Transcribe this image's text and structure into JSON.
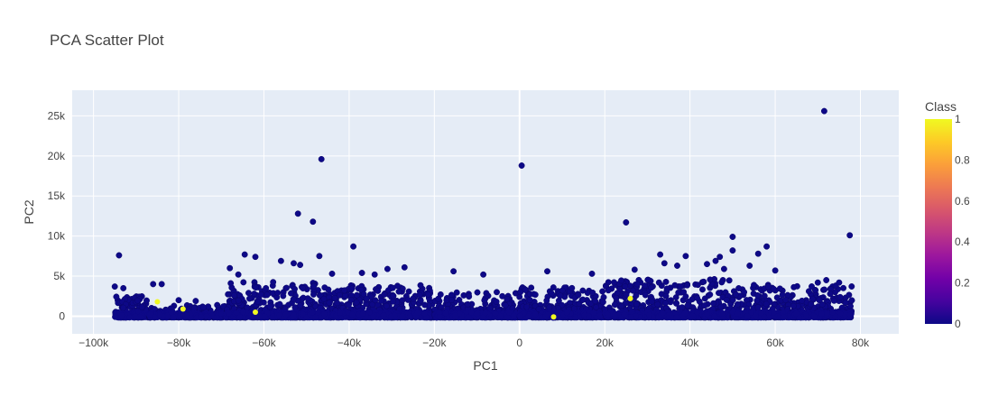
{
  "chart_data": {
    "type": "scatter",
    "title": "PCA Scatter Plot",
    "xlabel": "PC1",
    "ylabel": "PC2",
    "xlim": [
      -105000,
      89000
    ],
    "ylim": [
      -2200,
      28200
    ],
    "x_ticks": [
      -100000,
      -80000,
      -60000,
      -40000,
      -20000,
      0,
      20000,
      40000,
      60000,
      80000
    ],
    "x_tick_labels": [
      "−100k",
      "−80k",
      "−60k",
      "−40k",
      "−20k",
      "0",
      "20k",
      "40k",
      "60k",
      "80k"
    ],
    "y_ticks": [
      0,
      5000,
      10000,
      15000,
      20000,
      25000
    ],
    "y_tick_labels": [
      "0",
      "5k",
      "10k",
      "15k",
      "20k",
      "25k"
    ],
    "grid": true,
    "colorbar": {
      "title": "Class",
      "range": [
        0,
        1
      ],
      "ticks": [
        0,
        0.2,
        0.4,
        0.6,
        0.8,
        1
      ],
      "tick_labels": [
        "0",
        "0.2",
        "0.4",
        "0.6",
        "0.8",
        "1"
      ]
    },
    "outliers": [
      {
        "x": 71500,
        "y": 25600,
        "class": 0
      },
      {
        "x": -46500,
        "y": 19600,
        "class": 0
      },
      {
        "x": 500,
        "y": 18800,
        "class": 0
      },
      {
        "x": -52000,
        "y": 12800,
        "class": 0
      },
      {
        "x": -48500,
        "y": 11800,
        "class": 0
      },
      {
        "x": 25000,
        "y": 11700,
        "class": 0
      },
      {
        "x": 77500,
        "y": 10100,
        "class": 0
      },
      {
        "x": 50000,
        "y": 9900,
        "class": 0
      },
      {
        "x": -39000,
        "y": 8700,
        "class": 0
      },
      {
        "x": 58000,
        "y": 8700,
        "class": 0
      },
      {
        "x": -94000,
        "y": 7600,
        "class": 0
      },
      {
        "x": -64500,
        "y": 7700,
        "class": 0
      },
      {
        "x": -62000,
        "y": 7400,
        "class": 0
      },
      {
        "x": -47000,
        "y": 7500,
        "class": 0
      },
      {
        "x": 33000,
        "y": 7700,
        "class": 0
      },
      {
        "x": 39000,
        "y": 7500,
        "class": 0
      },
      {
        "x": 47000,
        "y": 7400,
        "class": 0
      },
      {
        "x": 56000,
        "y": 7800,
        "class": 0
      },
      {
        "x": 50000,
        "y": 8200,
        "class": 0
      },
      {
        "x": -68000,
        "y": 6000,
        "class": 0
      },
      {
        "x": -56000,
        "y": 6900,
        "class": 0
      },
      {
        "x": -53000,
        "y": 6600,
        "class": 0
      },
      {
        "x": -51500,
        "y": 6400,
        "class": 0
      },
      {
        "x": -31000,
        "y": 5900,
        "class": 0
      },
      {
        "x": -27000,
        "y": 6100,
        "class": 0
      },
      {
        "x": -15500,
        "y": 5600,
        "class": 0
      },
      {
        "x": -8500,
        "y": 5200,
        "class": 0
      },
      {
        "x": 6500,
        "y": 5600,
        "class": 0
      },
      {
        "x": 17000,
        "y": 5300,
        "class": 0
      },
      {
        "x": 27000,
        "y": 5800,
        "class": 0
      },
      {
        "x": 34000,
        "y": 6600,
        "class": 0
      },
      {
        "x": 37000,
        "y": 6300,
        "class": 0
      },
      {
        "x": 44000,
        "y": 6500,
        "class": 0
      },
      {
        "x": 46000,
        "y": 6900,
        "class": 0
      },
      {
        "x": 48000,
        "y": 5900,
        "class": 0
      },
      {
        "x": 54000,
        "y": 6300,
        "class": 0
      },
      {
        "x": 60000,
        "y": 5700,
        "class": 0
      },
      {
        "x": -66000,
        "y": 5200,
        "class": 0
      },
      {
        "x": -44000,
        "y": 5300,
        "class": 0
      },
      {
        "x": -37000,
        "y": 5400,
        "class": 0
      },
      {
        "x": -34000,
        "y": 5200,
        "class": 0
      },
      {
        "x": -86000,
        "y": 4000,
        "class": 0
      },
      {
        "x": -84000,
        "y": 4000,
        "class": 0
      },
      {
        "x": -76000,
        "y": 1900,
        "class": 0
      },
      {
        "x": -80000,
        "y": 2000,
        "class": 0
      },
      {
        "x": -95000,
        "y": 3700,
        "class": 0
      },
      {
        "x": -93000,
        "y": 3500,
        "class": 0
      },
      {
        "x": 75000,
        "y": 4200,
        "class": 0
      },
      {
        "x": 70000,
        "y": 4200,
        "class": 0
      },
      {
        "x": 72000,
        "y": 4500,
        "class": 0
      }
    ],
    "band_clusters": [
      {
        "x_min": -95000,
        "x_max": -87000,
        "y_max": 2500,
        "count": 150
      },
      {
        "x_min": -87000,
        "x_max": -69000,
        "y_max": 1400,
        "count": 220
      },
      {
        "x_min": -69000,
        "x_max": -44000,
        "y_max": 4300,
        "count": 420
      },
      {
        "x_min": -44000,
        "x_max": -20000,
        "y_max": 3900,
        "count": 380
      },
      {
        "x_min": -20000,
        "x_max": 0,
        "y_max": 3000,
        "count": 300
      },
      {
        "x_min": 0,
        "x_max": 20000,
        "y_max": 3600,
        "count": 300
      },
      {
        "x_min": 20000,
        "x_max": 50000,
        "y_max": 4700,
        "count": 450
      },
      {
        "x_min": 50000,
        "x_max": 78000,
        "y_max": 3900,
        "count": 430
      }
    ],
    "class1_points": [
      {
        "x": -85000,
        "y": 1800,
        "class": 1
      },
      {
        "x": -79000,
        "y": 900,
        "class": 1
      },
      {
        "x": -62000,
        "y": 500,
        "class": 1
      },
      {
        "x": 8000,
        "y": -100,
        "class": 1
      },
      {
        "x": 26000,
        "y": 2200,
        "class": 1
      }
    ]
  }
}
